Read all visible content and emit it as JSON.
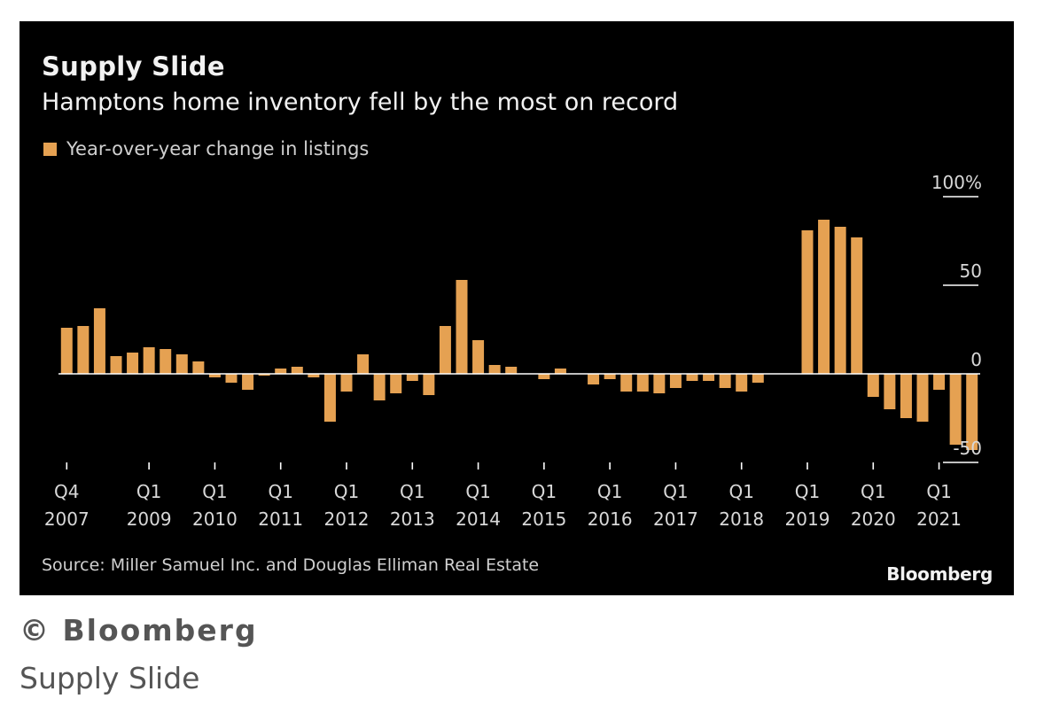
{
  "chart_data": {
    "type": "bar",
    "title": "Supply Slide",
    "subtitle": "Hamptons home inventory fell by the most on record",
    "legend": {
      "label": "Year-over-year change in listings",
      "color": "#e5a152",
      "placement": "top-left"
    },
    "y_ticks": [
      "100%",
      "50",
      "0",
      "-50"
    ],
    "y_tick_values": [
      100,
      50,
      0,
      -50
    ],
    "ylim": [
      -60,
      110
    ],
    "x_tick_labels": [
      {
        "q": "Q4",
        "year": "2007"
      },
      {
        "q": "Q1",
        "year": "2009"
      },
      {
        "q": "Q1",
        "year": "2010"
      },
      {
        "q": "Q1",
        "year": "2011"
      },
      {
        "q": "Q1",
        "year": "2012"
      },
      {
        "q": "Q1",
        "year": "2013"
      },
      {
        "q": "Q1",
        "year": "2014"
      },
      {
        "q": "Q1",
        "year": "2015"
      },
      {
        "q": "Q1",
        "year": "2016"
      },
      {
        "q": "Q1",
        "year": "2017"
      },
      {
        "q": "Q1",
        "year": "2018"
      },
      {
        "q": "Q1",
        "year": "2019"
      },
      {
        "q": "Q1",
        "year": "2020"
      },
      {
        "q": "Q1",
        "year": "2021"
      }
    ],
    "x_tick_indices": [
      0,
      5,
      9,
      13,
      17,
      21,
      25,
      29,
      33,
      37,
      41,
      45,
      49,
      53
    ],
    "values": [
      26,
      27,
      37,
      10,
      12,
      15,
      14,
      11,
      7,
      -2,
      -5,
      -9,
      -1,
      3,
      4,
      -2,
      -27,
      -10,
      11,
      -15,
      -11,
      -4,
      -12,
      27,
      53,
      19,
      5,
      4,
      0,
      -3,
      3,
      0,
      -6,
      -3,
      -10,
      -10,
      -11,
      -8,
      -4,
      -4,
      -8,
      -10,
      -5,
      0,
      0,
      81,
      87,
      83,
      77,
      -13,
      -20,
      -25,
      -27,
      -9,
      -40,
      -43
    ],
    "grid": false
  },
  "source": "Source: Miller Samuel Inc. and Douglas Elliman Real Estate",
  "brand": "Bloomberg",
  "caption": {
    "credit": "© Bloomberg",
    "title": "Supply Slide"
  },
  "colors": {
    "background": "#000000",
    "bar": "#e5a152",
    "axis": "#ffffff"
  }
}
